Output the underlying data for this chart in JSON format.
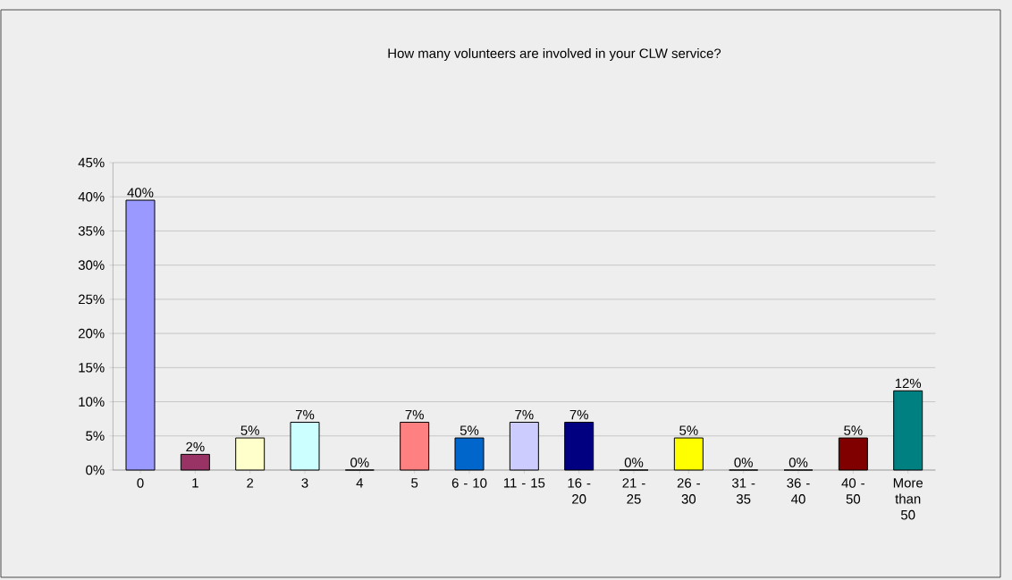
{
  "chart_data": {
    "type": "bar",
    "title": "How many volunteers are involved in your CLW service?",
    "categories": [
      "0",
      "1",
      "2",
      "3",
      "4",
      "5",
      "6 - 10",
      "11 - 15",
      "16 - 20",
      "21 - 25",
      "26 - 30",
      "31 - 35",
      "36 - 40",
      "40 - 50",
      "More than 50"
    ],
    "values": [
      39.5,
      2.3,
      4.7,
      7.0,
      0,
      7.0,
      4.7,
      7.0,
      7.0,
      0,
      4.7,
      0,
      0,
      4.7,
      11.6
    ],
    "value_labels": [
      "40%",
      "2%",
      "5%",
      "7%",
      "0%",
      "7%",
      "5%",
      "7%",
      "7%",
      "0%",
      "5%",
      "0%",
      "0%",
      "5%",
      "12%"
    ],
    "colors": [
      "#9999ff",
      "#993366",
      "#ffffcc",
      "#ccffff",
      "#660066",
      "#ff8080",
      "#0066cc",
      "#ccccff",
      "#000080",
      "#ff00ff",
      "#ffff00",
      "#00ffff",
      "#800080",
      "#800000",
      "#008080"
    ],
    "ylim": [
      0,
      45
    ],
    "yticks": [
      {
        "value": 0,
        "label": "0%"
      },
      {
        "value": 5,
        "label": "5%"
      },
      {
        "value": 10,
        "label": "10%"
      },
      {
        "value": 15,
        "label": "15%"
      },
      {
        "value": 20,
        "label": "20%"
      },
      {
        "value": 25,
        "label": "25%"
      },
      {
        "value": 30,
        "label": "30%"
      },
      {
        "value": 35,
        "label": "35%"
      },
      {
        "value": 40,
        "label": "40%"
      },
      {
        "value": 45,
        "label": "45%"
      }
    ],
    "grid": "y"
  }
}
